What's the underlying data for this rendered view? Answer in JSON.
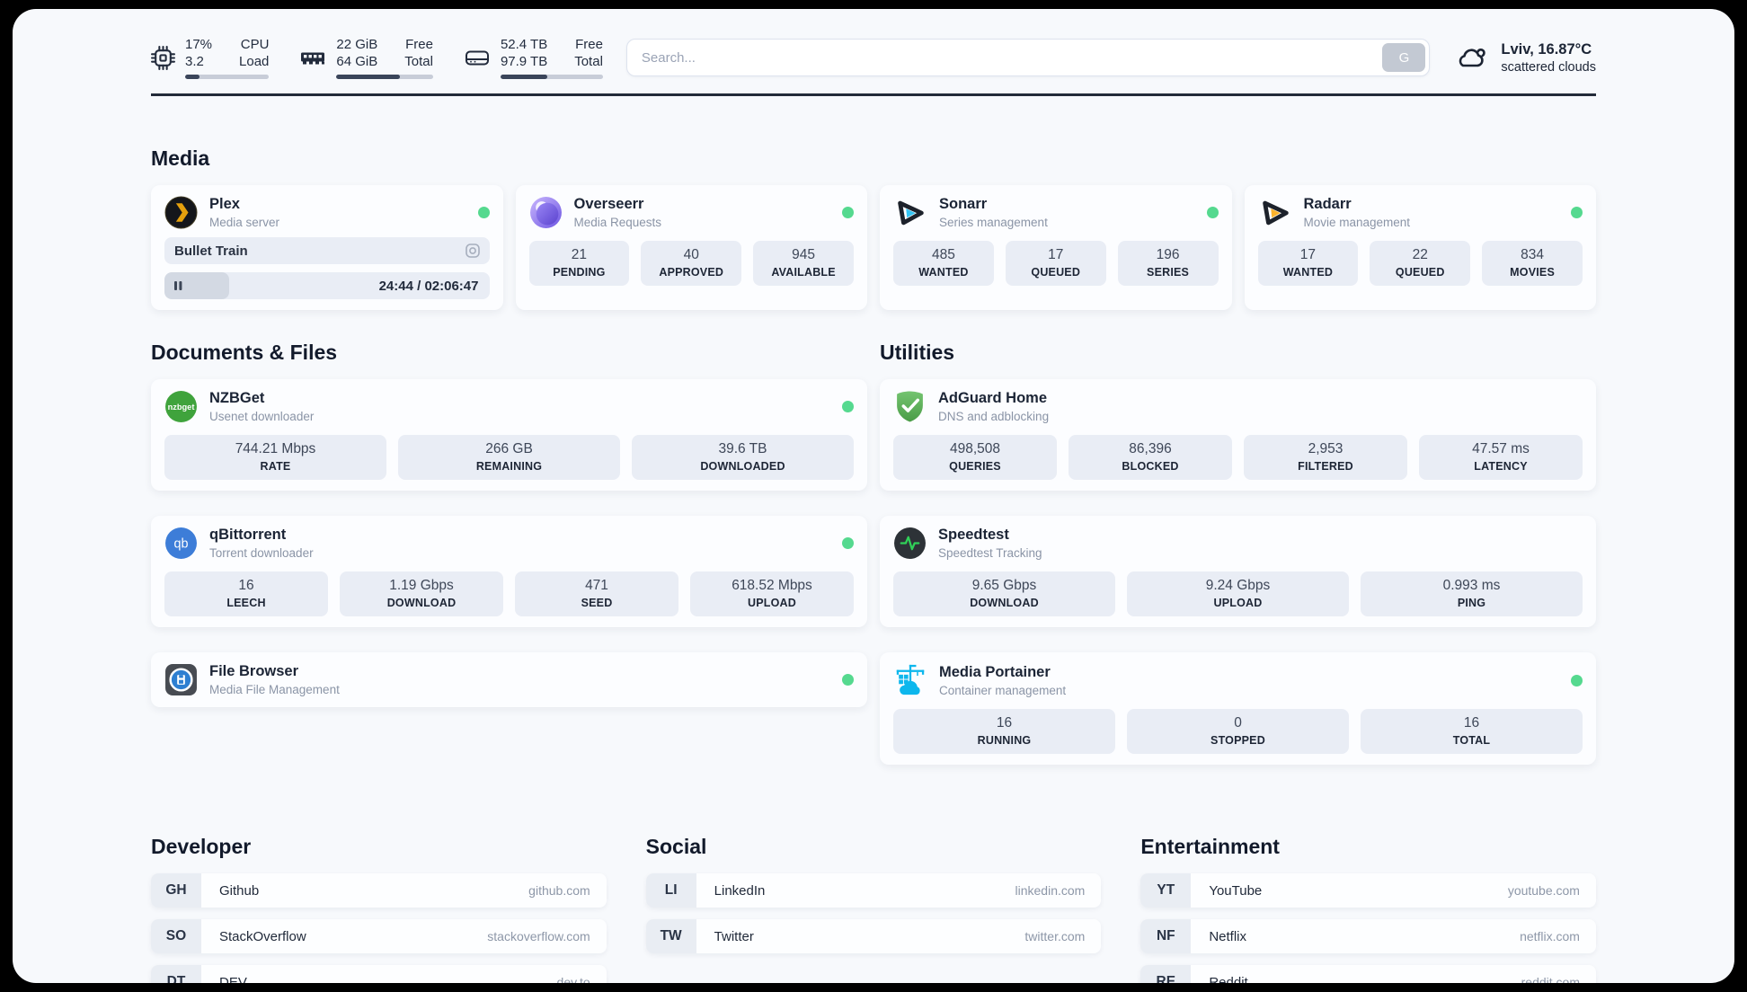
{
  "header": {
    "system_stats": [
      {
        "icon": "cpu-icon",
        "values": [
          "17%",
          "3.2"
        ],
        "labels": [
          "CPU",
          "Load"
        ],
        "progress_pct": 17
      },
      {
        "icon": "ram-icon",
        "values": [
          "22 GiB",
          "64 GiB"
        ],
        "labels": [
          "Free",
          "Total"
        ],
        "progress_pct": 66
      },
      {
        "icon": "disk-icon",
        "values": [
          "52.4 TB",
          "97.9 TB"
        ],
        "labels": [
          "Free",
          "Total"
        ],
        "progress_pct": 46
      }
    ],
    "search": {
      "placeholder": "Search...",
      "button_label": "G"
    },
    "weather": {
      "location": "Lviv, 16.87°C",
      "condition": "scattered clouds"
    }
  },
  "sections": {
    "media": {
      "title": "Media",
      "plex": {
        "name": "Plex",
        "subtitle": "Media server",
        "online": true,
        "now_playing": "Bullet Train",
        "time": "24:44 / 02:06:47",
        "progress_pct": 20
      },
      "overseerr": {
        "name": "Overseerr",
        "subtitle": "Media Requests",
        "online": true,
        "stats": [
          {
            "value": "21",
            "label": "PENDING"
          },
          {
            "value": "40",
            "label": "APPROVED"
          },
          {
            "value": "945",
            "label": "AVAILABLE"
          }
        ]
      },
      "sonarr": {
        "name": "Sonarr",
        "subtitle": "Series management",
        "online": true,
        "stats": [
          {
            "value": "485",
            "label": "WANTED"
          },
          {
            "value": "17",
            "label": "QUEUED"
          },
          {
            "value": "196",
            "label": "SERIES"
          }
        ]
      },
      "radarr": {
        "name": "Radarr",
        "subtitle": "Movie management",
        "online": true,
        "stats": [
          {
            "value": "17",
            "label": "WANTED"
          },
          {
            "value": "22",
            "label": "QUEUED"
          },
          {
            "value": "834",
            "label": "MOVIES"
          }
        ]
      }
    },
    "documents": {
      "title": "Documents & Files",
      "nzbget": {
        "name": "NZBGet",
        "subtitle": "Usenet downloader",
        "online": true,
        "stats": [
          {
            "value": "744.21 Mbps",
            "label": "RATE"
          },
          {
            "value": "266 GB",
            "label": "REMAINING"
          },
          {
            "value": "39.6 TB",
            "label": "DOWNLOADED"
          }
        ]
      },
      "qbittorrent": {
        "name": "qBittorrent",
        "subtitle": "Torrent downloader",
        "online": true,
        "stats": [
          {
            "value": "16",
            "label": "LEECH"
          },
          {
            "value": "1.19 Gbps",
            "label": "DOWNLOAD"
          },
          {
            "value": "471",
            "label": "SEED"
          },
          {
            "value": "618.52 Mbps",
            "label": "UPLOAD"
          }
        ]
      },
      "filebrowser": {
        "name": "File Browser",
        "subtitle": "Media File Management",
        "online": true
      }
    },
    "utilities": {
      "title": "Utilities",
      "adguard": {
        "name": "AdGuard Home",
        "subtitle": "DNS and adblocking",
        "online": false,
        "stats": [
          {
            "value": "498,508",
            "label": "QUERIES"
          },
          {
            "value": "86,396",
            "label": "BLOCKED"
          },
          {
            "value": "2,953",
            "label": "FILTERED"
          },
          {
            "value": "47.57 ms",
            "label": "LATENCY"
          }
        ]
      },
      "speedtest": {
        "name": "Speedtest",
        "subtitle": "Speedtest Tracking",
        "online": false,
        "stats": [
          {
            "value": "9.65 Gbps",
            "label": "DOWNLOAD"
          },
          {
            "value": "9.24 Gbps",
            "label": "UPLOAD"
          },
          {
            "value": "0.993 ms",
            "label": "PING"
          }
        ]
      },
      "portainer": {
        "name": "Media Portainer",
        "subtitle": "Container management",
        "online": true,
        "stats": [
          {
            "value": "16",
            "label": "RUNNING"
          },
          {
            "value": "0",
            "label": "STOPPED"
          },
          {
            "value": "16",
            "label": "TOTAL"
          }
        ]
      }
    },
    "bookmarks": {
      "columns": [
        {
          "title": "Developer",
          "items": [
            {
              "abbr": "GH",
              "name": "Github",
              "url": "github.com"
            },
            {
              "abbr": "SO",
              "name": "StackOverflow",
              "url": "stackoverflow.com"
            },
            {
              "abbr": "DT",
              "name": "DEV",
              "url": "dev.to"
            }
          ]
        },
        {
          "title": "Social",
          "items": [
            {
              "abbr": "LI",
              "name": "LinkedIn",
              "url": "linkedin.com"
            },
            {
              "abbr": "TW",
              "name": "Twitter",
              "url": "twitter.com"
            }
          ]
        },
        {
          "title": "Entertainment",
          "items": [
            {
              "abbr": "YT",
              "name": "YouTube",
              "url": "youtube.com"
            },
            {
              "abbr": "NF",
              "name": "Netflix",
              "url": "netflix.com"
            },
            {
              "abbr": "RE",
              "name": "Reddit",
              "url": "reddit.com"
            }
          ]
        }
      ]
    }
  },
  "colors": {
    "status_online": "#55d98f",
    "plex_amber": "#e5a00d",
    "sonarr_cyan": "#35c5f4",
    "radarr_amber": "#fcb32c",
    "nzbget_green": "#3fa33c",
    "qbittorrent_blue": "#3d7dd8",
    "adguard_green": "#58b159",
    "speedtest_pulse": "#30d158",
    "overseerr_purple": "#7c66ea",
    "portainer_blue": "#0db7ed"
  }
}
